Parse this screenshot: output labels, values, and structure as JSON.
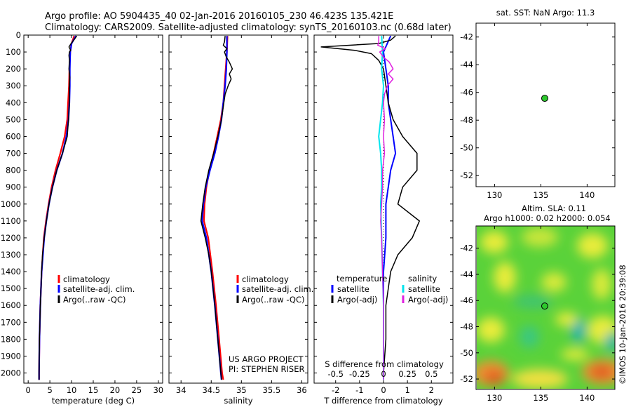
{
  "header": {
    "line1": "Argo profile: AO 5904435_40 02-Jan-2016 20160105_230 46.423S 135.421E",
    "line2": "Climatology: CARS2009. Satellite-adjusted climatology: synTS_20160103.nc (0.68d later)"
  },
  "colors": {
    "climatology": "#ff0000",
    "satellite": "#0000ff",
    "argo": "#000000",
    "sal_satellite": "#00e5ee",
    "sal_argo": "#e020e0",
    "marker": "#2cc82c"
  },
  "chart_data": [
    {
      "id": "temperature",
      "type": "line",
      "xlabel": "temperature (deg C)",
      "xlim": [
        -1,
        31
      ],
      "xticks": [
        0,
        5,
        10,
        15,
        20,
        25,
        30
      ],
      "ylim": [
        2060,
        0
      ],
      "yticks": [
        0,
        100,
        200,
        300,
        400,
        500,
        600,
        700,
        800,
        900,
        1000,
        1100,
        1200,
        1300,
        1400,
        1500,
        1600,
        1700,
        1800,
        1900,
        2000
      ],
      "legend": [
        "climatology",
        "satellite-adj. clim.",
        "Argo(..raw -QC)"
      ],
      "series": [
        {
          "name": "climatology",
          "depth": [
            5,
            50,
            100,
            200,
            300,
            400,
            500,
            600,
            700,
            800,
            900,
            1000,
            1100,
            1200,
            1400,
            1600,
            1800,
            2000,
            2040
          ],
          "values": [
            10.6,
            10.0,
            9.7,
            9.5,
            9.4,
            9.2,
            9.0,
            8.4,
            7.4,
            6.3,
            5.4,
            4.7,
            4.1,
            3.6,
            3.1,
            2.8,
            2.6,
            2.5,
            2.5
          ]
        },
        {
          "name": "satellite-adj. clim.",
          "depth": [
            5,
            50,
            100,
            200,
            300,
            400,
            500,
            600,
            700,
            800,
            900,
            1000,
            1100,
            1200,
            1400,
            1600,
            1800,
            2000,
            2040
          ],
          "values": [
            11.0,
            10.0,
            9.7,
            9.6,
            9.6,
            9.5,
            9.3,
            8.8,
            7.9,
            6.6,
            5.6,
            4.8,
            4.2,
            3.7,
            3.1,
            2.8,
            2.6,
            2.5,
            2.5
          ]
        },
        {
          "name": "Argo(..raw -QC)",
          "depth": [
            5,
            30,
            50,
            70,
            90,
            100,
            120,
            150,
            200,
            250,
            300,
            400,
            500,
            600,
            700,
            800,
            900,
            1000,
            1100,
            1200,
            1300,
            1400,
            1600,
            1800,
            2000,
            2040
          ],
          "values": [
            11.2,
            10.5,
            9.9,
            9.4,
            9.8,
            9.5,
            9.4,
            9.5,
            9.4,
            9.6,
            9.5,
            9.5,
            9.3,
            9.0,
            7.9,
            6.6,
            5.6,
            4.8,
            4.2,
            3.7,
            3.3,
            3.1,
            2.8,
            2.6,
            2.5,
            2.5
          ]
        }
      ]
    },
    {
      "id": "salinity",
      "type": "line",
      "xlabel": "salinity",
      "xlim": [
        33.8,
        36.1
      ],
      "xticks": [
        34,
        34.5,
        35,
        35.5,
        36
      ],
      "xticklabels": [
        "34",
        "34.5",
        "35",
        "35.5",
        "36"
      ],
      "ylim": [
        2060,
        0
      ],
      "legend": [
        "climatology",
        "satellite-adj. clim.",
        "Argo(..raw -QC)"
      ],
      "annotation": [
        "US ARGO PROJECT",
        "PI: STEPHEN RISER"
      ],
      "series": [
        {
          "name": "climatology",
          "depth": [
            5,
            100,
            200,
            300,
            400,
            500,
            600,
            700,
            800,
            900,
            1000,
            1100,
            1200,
            1400,
            1600,
            1800,
            2000,
            2040
          ],
          "values": [
            34.77,
            34.76,
            34.74,
            34.72,
            34.7,
            34.66,
            34.6,
            34.54,
            34.47,
            34.42,
            34.39,
            34.38,
            34.45,
            34.52,
            34.58,
            34.63,
            34.68,
            34.7
          ]
        },
        {
          "name": "satellite-adj. clim.",
          "depth": [
            5,
            100,
            200,
            300,
            400,
            500,
            600,
            700,
            800,
            900,
            1000,
            1100,
            1200,
            1400,
            1600,
            1800,
            2000,
            2040
          ],
          "values": [
            34.76,
            34.76,
            34.75,
            34.73,
            34.7,
            34.67,
            34.62,
            34.56,
            34.48,
            34.41,
            34.37,
            34.35,
            34.42,
            34.5,
            34.56,
            34.61,
            34.66,
            34.67
          ]
        },
        {
          "name": "Argo(..raw -QC)",
          "depth": [
            5,
            40,
            60,
            80,
            100,
            130,
            160,
            200,
            230,
            260,
            300,
            350,
            400,
            500,
            600,
            700,
            800,
            900,
            1000,
            1100,
            1200,
            1300,
            1400,
            1600,
            1800,
            2000,
            2040
          ],
          "values": [
            34.73,
            34.72,
            34.7,
            34.76,
            34.72,
            34.75,
            34.8,
            34.85,
            34.8,
            34.83,
            34.78,
            34.73,
            34.71,
            34.67,
            34.61,
            34.54,
            34.46,
            34.4,
            34.36,
            34.33,
            34.4,
            34.46,
            34.5,
            34.56,
            34.61,
            34.66,
            34.67
          ]
        }
      ]
    },
    {
      "id": "difference",
      "type": "line",
      "xlabel": "T difference from climatology",
      "xlabel_top": "S difference from climatology",
      "xlim": [
        -2.9,
        2.9
      ],
      "xticks": [
        -2,
        -1,
        0,
        1,
        2
      ],
      "xticks_top": [
        -0.5,
        -0.25,
        0,
        0.25,
        0.5
      ],
      "ylim": [
        2060,
        0
      ],
      "legend": {
        "temperature": [
          "satellite",
          "Argo(-adj)"
        ],
        "salinity": [
          "satellite",
          "Argo(-adj)"
        ]
      },
      "legend_headers": [
        "temperature",
        "salinity"
      ],
      "series": [
        {
          "name": "temperature satellite",
          "depth": [
            5,
            100,
            200,
            300,
            400,
            500,
            600,
            700,
            800,
            900,
            1000,
            1200,
            1400,
            1600,
            1800,
            2000,
            2040
          ],
          "values": [
            0.3,
            0.0,
            0.1,
            0.2,
            0.2,
            0.3,
            0.4,
            0.5,
            0.3,
            0.2,
            0.1,
            0.1,
            0.0,
            0.0,
            0.0,
            0.0,
            0.0
          ]
        },
        {
          "name": "temperature Argo(-adj)",
          "depth": [
            5,
            30,
            50,
            70,
            90,
            110,
            150,
            200,
            300,
            400,
            500,
            600,
            700,
            800,
            900,
            1000,
            1100,
            1200,
            1300,
            1400,
            1600,
            1800,
            2000,
            2040
          ],
          "values": [
            0.5,
            0.3,
            -0.2,
            -2.6,
            -1.2,
            -0.5,
            -0.2,
            0.0,
            0.1,
            0.2,
            0.4,
            0.8,
            1.4,
            1.4,
            0.8,
            0.6,
            1.5,
            1.2,
            0.6,
            0.3,
            0.1,
            0.1,
            0.0,
            0.0
          ]
        },
        {
          "name": "salinity satellite",
          "depth": [
            5,
            100,
            200,
            300,
            400,
            500,
            600,
            700,
            800,
            900,
            1000,
            1200,
            1400,
            1600,
            1800,
            2000,
            2040
          ],
          "values": [
            -0.02,
            -0.01,
            -0.02,
            0.0,
            -0.01,
            -0.03,
            -0.05,
            -0.03,
            -0.02,
            -0.02,
            -0.03,
            -0.02,
            -0.01,
            0.0,
            0.0,
            0.0,
            0.0
          ]
        },
        {
          "name": "salinity Argo(-adj)",
          "depth": [
            5,
            40,
            60,
            80,
            100,
            130,
            160,
            200,
            230,
            260,
            300,
            350,
            400,
            500,
            600,
            700,
            800,
            900,
            1000,
            1100,
            1200,
            1400,
            1600,
            1800,
            2000,
            2040
          ],
          "values": [
            -0.05,
            -0.05,
            -0.06,
            0.02,
            -0.04,
            0.0,
            0.06,
            0.1,
            0.05,
            0.1,
            0.04,
            0.01,
            0.0,
            0.01,
            0.0,
            0.01,
            -0.01,
            -0.01,
            -0.02,
            -0.03,
            -0.02,
            -0.01,
            0.0,
            0.0,
            0.0,
            0.0
          ]
        }
      ]
    },
    {
      "id": "sst_map",
      "type": "scatter",
      "title": "sat. SST: NaN Argo: 11.3",
      "xlim": [
        128,
        143
      ],
      "ylim": [
        -52.8,
        -41
      ],
      "xticks": [
        130,
        135,
        140
      ],
      "yticks": [
        -42,
        -44,
        -46,
        -48,
        -50,
        -52
      ],
      "points": [
        {
          "lon": 135.421,
          "lat": -46.423
        }
      ]
    },
    {
      "id": "sla_map",
      "type": "heatmap",
      "title_line1": "Altim. SLA: 0.11",
      "title_line2": "Argo h1000: 0.02 h2000: 0.054",
      "xlim": [
        128,
        143
      ],
      "ylim": [
        -52.8,
        -40.3
      ],
      "xticks": [
        130,
        135,
        140
      ],
      "yticks": [
        -42,
        -44,
        -46,
        -48,
        -50,
        -52
      ],
      "points": [
        {
          "lon": 135.421,
          "lat": -46.423
        }
      ]
    }
  ],
  "watermark": "©IMOS 10-Jan-2016 20:39:08"
}
